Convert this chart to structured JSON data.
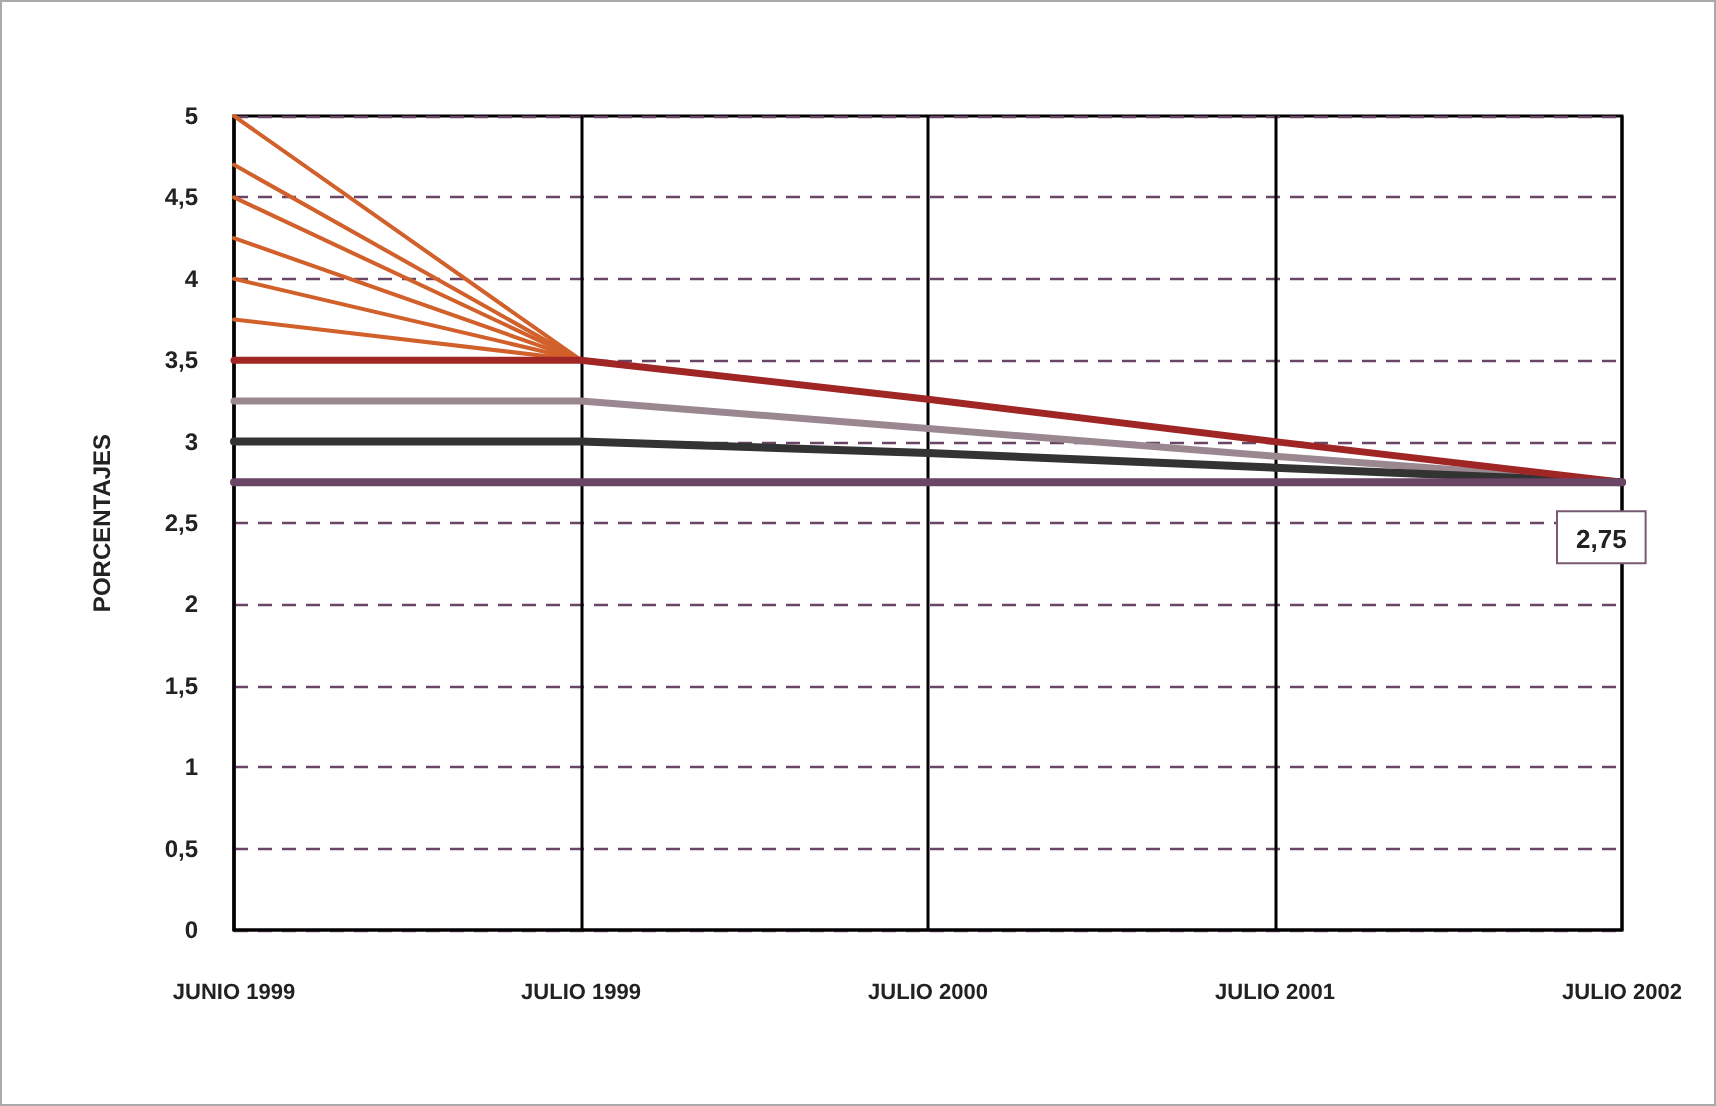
{
  "chart_data": {
    "type": "line",
    "ylabel": "PORCENTAJES",
    "categories": [
      "JUNIO 1999",
      "JULIO 1999",
      "JULIO 2000",
      "JULIO 2001",
      "JULIO 2002"
    ],
    "series": [
      {
        "color": "#d2602a",
        "values": [
          5,
          3.5,
          null,
          null,
          null
        ]
      },
      {
        "color": "#d2602a",
        "values": [
          4.7,
          3.5,
          null,
          null,
          null
        ]
      },
      {
        "color": "#d2602a",
        "values": [
          4.5,
          3.5,
          null,
          null,
          null
        ]
      },
      {
        "color": "#d2602a",
        "values": [
          4.25,
          3.5,
          null,
          null,
          null
        ]
      },
      {
        "color": "#d2602a",
        "values": [
          4,
          3.5,
          null,
          null,
          null
        ]
      },
      {
        "color": "#d2602a",
        "values": [
          3.75,
          3.5,
          null,
          null,
          null
        ]
      },
      {
        "color": "#9a8790",
        "values": [
          3.25,
          3.25,
          3.08,
          2.91,
          2.75
        ]
      },
      {
        "color": "#333333",
        "values": [
          3,
          3,
          2.93,
          2.84,
          2.75
        ]
      },
      {
        "color": "#a02525",
        "values": [
          3.5,
          3.5,
          3.26,
          3.0,
          2.75
        ]
      },
      {
        "color": "#6b4565",
        "values": [
          2.75,
          2.75,
          2.75,
          2.75,
          2.75
        ]
      }
    ],
    "ylim": [
      0,
      5
    ],
    "yticks": [
      0,
      {
        "value": 0.5,
        "label": "0,5"
      },
      1,
      {
        "value": 1.5,
        "label": "1,5"
      },
      2,
      {
        "value": 2.5,
        "label": "2,5"
      },
      3,
      {
        "value": 3.5,
        "label": "3,5"
      },
      4,
      {
        "value": 4.5,
        "label": "4,5"
      },
      5
    ],
    "grid": true,
    "marker": "none",
    "line_style": "solid",
    "annotations": [
      {
        "text": "2,75",
        "x": "JULIO 2002",
        "y": 2.75
      }
    ]
  }
}
